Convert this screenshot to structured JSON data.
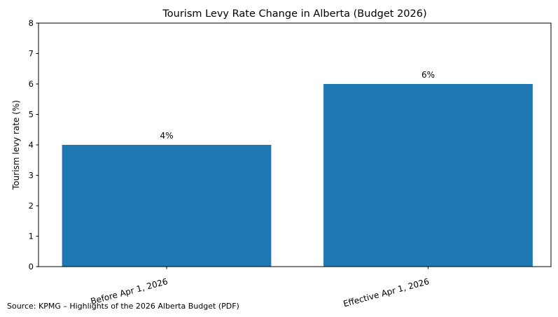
{
  "chart_data": {
    "type": "bar",
    "title": "Tourism Levy Rate Change in Alberta (Budget 2026)",
    "xlabel": "",
    "ylabel": "Tourism levy rate (%)",
    "categories": [
      "Before Apr 1, 2026",
      "Effective Apr 1, 2026"
    ],
    "values": [
      4,
      6
    ],
    "data_labels": [
      "4%",
      "6%"
    ],
    "ylim": [
      0,
      8
    ],
    "yticks": [
      0,
      1,
      2,
      3,
      4,
      5,
      6,
      7,
      8
    ],
    "grid": false,
    "bar_color": "#1f77b4",
    "source": "Source: KPMG – Highlights of the 2026 Alberta Budget (PDF)"
  }
}
